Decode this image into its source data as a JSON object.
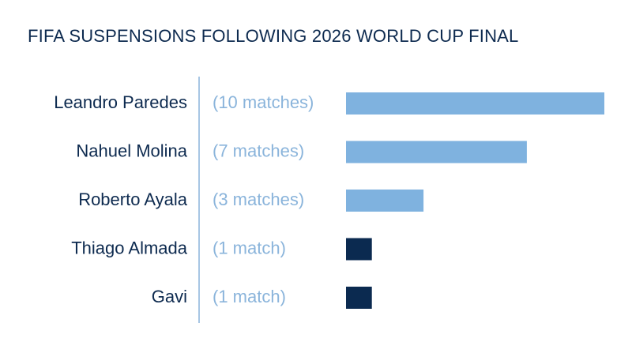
{
  "chart_data": {
    "type": "bar",
    "orientation": "horizontal",
    "title": "FIFA SUSPENSIONS FOLLOWING 2026 WORLD CUP FINAL",
    "categories": [
      "Leandro Paredes",
      "Nahuel Molina",
      "Roberto Ayala",
      "Thiago Almada",
      "Gavi"
    ],
    "values": [
      10,
      7,
      3,
      1,
      1
    ],
    "value_labels": [
      "(10 matches)",
      "(7 matches)",
      "(3 matches)",
      "(1 match)",
      "(1 match)"
    ],
    "colors": [
      "#7fb2df",
      "#7fb2df",
      "#7fb2df",
      "#0b2a50",
      "#0b2a50"
    ]
  }
}
